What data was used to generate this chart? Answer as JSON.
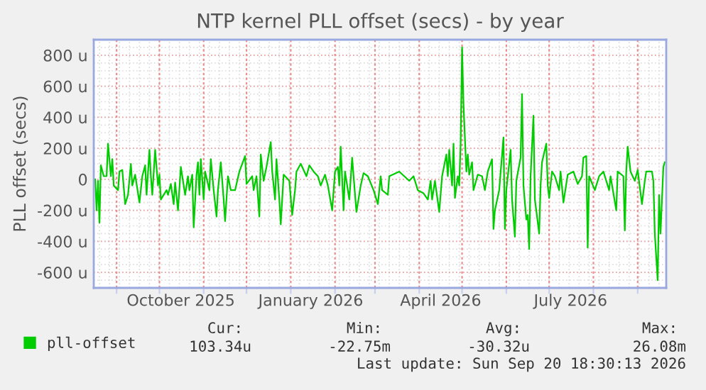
{
  "chart_data": {
    "type": "line",
    "title": "NTP kernel PLL offset (secs) - by year",
    "ylabel": "PLL offset (secs)",
    "xlim": [
      "2025-08-16",
      "2026-09-21"
    ],
    "ylim": [
      -700,
      900
    ],
    "yticks": [
      {
        "value": -600,
        "label": "-600 u"
      },
      {
        "value": -400,
        "label": "-400 u"
      },
      {
        "value": -200,
        "label": "-200 u"
      },
      0,
      {
        "value": 200,
        "label": "200 u"
      },
      {
        "value": 400,
        "label": "400 u"
      },
      {
        "value": 600,
        "label": "600 u"
      },
      {
        "value": 800,
        "label": "800 u"
      }
    ],
    "xticks": [
      {
        "value": "2025-09-01",
        "label": null
      },
      {
        "value": "2025-10-01",
        "label": null
      },
      {
        "value": "2025-10-16",
        "label": "October 2025"
      },
      {
        "value": "2025-11-01",
        "label": null
      },
      {
        "value": "2025-12-01",
        "label": null
      },
      {
        "value": "2026-01-01",
        "label": null
      },
      {
        "value": "2026-01-15",
        "label": "January 2026"
      },
      {
        "value": "2026-02-01",
        "label": null
      },
      {
        "value": "2026-03-01",
        "label": null
      },
      {
        "value": "2026-04-01",
        "label": null
      },
      {
        "value": "2026-04-16",
        "label": "April 2026"
      },
      {
        "value": "2026-05-01",
        "label": null
      },
      {
        "value": "2026-06-01",
        "label": null
      },
      {
        "value": "2026-07-01",
        "label": null
      },
      {
        "value": "2026-07-16",
        "label": "July 2026"
      },
      {
        "value": "2026-08-01",
        "label": null
      },
      {
        "value": "2026-09-01",
        "label": null
      }
    ],
    "grid": true,
    "legend": "bottom",
    "line_style": "solid",
    "marker": "none",
    "series": [
      {
        "name": "pll-offset",
        "color": "#00cc00",
        "x": [
          "2025-08-17",
          "2025-08-18",
          "2025-08-19",
          "2025-08-20",
          "2025-08-21",
          "2025-08-23",
          "2025-08-25",
          "2025-08-26",
          "2025-08-28",
          "2025-08-29",
          "2025-08-30",
          "2025-09-02",
          "2025-09-03",
          "2025-09-05",
          "2025-09-07",
          "2025-09-09",
          "2025-09-11",
          "2025-09-12",
          "2025-09-14",
          "2025-09-17",
          "2025-09-19",
          "2025-09-21",
          "2025-09-22",
          "2025-09-24",
          "2025-09-25",
          "2025-09-26",
          "2025-09-28",
          "2025-09-30",
          "2025-10-01",
          "2025-10-02",
          "2025-10-06",
          "2025-10-07",
          "2025-10-09",
          "2025-10-11",
          "2025-10-12",
          "2025-10-14",
          "2025-10-16",
          "2025-10-19",
          "2025-10-21",
          "2025-10-22",
          "2025-10-24",
          "2025-10-25",
          "2025-10-27",
          "2025-10-28",
          "2025-10-29",
          "2025-10-30",
          "2025-11-01",
          "2025-11-02",
          "2025-11-05",
          "2025-11-06",
          "2025-11-08",
          "2025-11-10",
          "2025-11-11",
          "2025-11-13",
          "2025-11-15",
          "2025-11-16",
          "2025-11-18",
          "2025-11-20",
          "2025-11-23",
          "2025-11-26",
          "2025-11-30",
          "2025-12-01",
          "2025-12-05",
          "2025-12-06",
          "2025-12-08",
          "2025-12-10",
          "2025-12-11",
          "2025-12-13",
          "2025-12-15",
          "2025-12-18",
          "2025-12-19",
          "2025-12-21",
          "2025-12-22",
          "2025-12-24",
          "2025-12-25",
          "2025-12-27",
          "2025-12-31",
          "2026-01-02",
          "2026-01-04",
          "2026-01-05",
          "2026-01-08",
          "2026-01-12",
          "2026-01-14",
          "2026-01-17",
          "2026-01-20",
          "2026-01-22",
          "2026-01-25",
          "2026-01-27",
          "2026-01-30",
          "2026-02-01",
          "2026-02-03",
          "2026-02-04",
          "2026-02-05",
          "2026-02-07",
          "2026-02-08",
          "2026-02-11",
          "2026-02-13",
          "2026-02-14",
          "2026-02-16",
          "2026-02-19",
          "2026-02-21",
          "2026-02-24",
          "2026-02-28",
          "2026-03-03",
          "2026-03-05",
          "2026-03-06",
          "2026-03-10",
          "2026-03-11",
          "2026-03-18",
          "2026-03-25",
          "2026-03-28",
          "2026-03-31",
          "2026-04-04",
          "2026-04-07",
          "2026-04-09",
          "2026-04-10",
          "2026-04-12",
          "2026-04-15",
          "2026-04-17",
          "2026-04-20",
          "2026-04-21",
          "2026-04-22",
          "2026-04-24",
          "2026-04-25",
          "2026-04-26",
          "2026-04-28",
          "2026-04-29",
          "2026-04-30",
          "2026-05-01",
          "2026-05-02",
          "2026-05-04",
          "2026-05-05",
          "2026-05-06",
          "2026-05-08",
          "2026-05-09",
          "2026-05-12",
          "2026-05-15",
          "2026-05-17",
          "2026-05-19",
          "2026-05-22",
          "2026-05-23",
          "2026-05-24",
          "2026-05-27",
          "2026-05-30",
          "2026-05-31",
          "2026-06-01",
          "2026-06-04",
          "2026-06-05",
          "2026-06-07",
          "2026-06-08",
          "2026-06-11",
          "2026-06-12",
          "2026-06-13",
          "2026-06-15",
          "2026-06-16",
          "2026-06-17",
          "2026-06-18",
          "2026-06-20",
          "2026-06-21",
          "2026-06-24",
          "2026-06-25",
          "2026-06-26",
          "2026-06-29",
          "2026-06-30",
          "2026-07-01",
          "2026-07-03",
          "2026-07-05",
          "2026-07-08",
          "2026-07-09",
          "2026-07-11",
          "2026-07-14",
          "2026-07-18",
          "2026-07-21",
          "2026-07-24",
          "2026-07-25",
          "2026-07-27",
          "2026-07-28",
          "2026-07-29",
          "2026-08-02",
          "2026-08-05",
          "2026-08-08",
          "2026-08-12",
          "2026-08-13",
          "2026-08-17",
          "2026-08-18",
          "2026-08-22",
          "2026-08-23",
          "2026-08-24",
          "2026-08-25",
          "2026-08-27",
          "2026-08-30",
          "2026-09-01",
          "2026-09-04",
          "2026-09-06",
          "2026-09-07",
          "2026-09-11",
          "2026-09-12",
          "2026-09-13",
          "2026-09-15",
          "2026-09-16",
          "2026-09-17",
          "2026-09-19",
          "2026-09-20"
        ],
        "values": [
          0,
          -200,
          -10,
          -280,
          90,
          20,
          20,
          230,
          20,
          130,
          -40,
          -70,
          50,
          60,
          -160,
          -100,
          100,
          -40,
          30,
          -150,
          20,
          90,
          -100,
          190,
          20,
          -100,
          190,
          -40,
          30,
          -130,
          -70,
          -100,
          -30,
          -160,
          -20,
          -200,
          80,
          -100,
          20,
          -70,
          30,
          -310,
          30,
          110,
          -100,
          130,
          -130,
          50,
          -70,
          130,
          -70,
          -240,
          -70,
          110,
          -130,
          -270,
          20,
          -70,
          -70,
          50,
          150,
          -30,
          20,
          -70,
          20,
          -240,
          160,
          -10,
          80,
          240,
          50,
          -130,
          130,
          -130,
          -290,
          30,
          -10,
          -230,
          -70,
          50,
          100,
          20,
          90,
          50,
          20,
          -40,
          30,
          -40,
          -200,
          50,
          80,
          -40,
          210,
          -200,
          50,
          -130,
          140,
          20,
          -210,
          -40,
          40,
          20,
          -70,
          -160,
          20,
          -70,
          -100,
          20,
          50,
          -10,
          20,
          -70,
          -90,
          -130,
          -10,
          -130,
          -10,
          -210,
          20,
          160,
          20,
          190,
          -40,
          230,
          -120,
          20,
          -40,
          230,
          850,
          480,
          50,
          160,
          30,
          110,
          -70,
          30,
          20,
          -70,
          50,
          130,
          -320,
          -200,
          -70,
          270,
          -320,
          -70,
          190,
          -130,
          -370,
          -10,
          140,
          550,
          -40,
          -260,
          -230,
          -450,
          20,
          410,
          -130,
          -350,
          -40,
          110,
          230,
          -40,
          -120,
          50,
          20,
          -70,
          50,
          -150,
          30,
          50,
          -30,
          20,
          140,
          150,
          -440,
          20,
          -70,
          20,
          50,
          -70,
          20,
          -200,
          50,
          20,
          -330,
          50,
          210,
          50,
          -10,
          60,
          -160,
          -10,
          50,
          50,
          -10,
          -350,
          -650,
          -100,
          -350,
          80,
          110
        ]
      }
    ],
    "annotations": [
      "Cur:",
      "Min:",
      "Avg:",
      "Max:",
      "103.34u",
      "-22.75m",
      "-30.32u",
      "26.08m",
      "Last update: Sun Sep 20 18:30:13 2026"
    ]
  }
}
